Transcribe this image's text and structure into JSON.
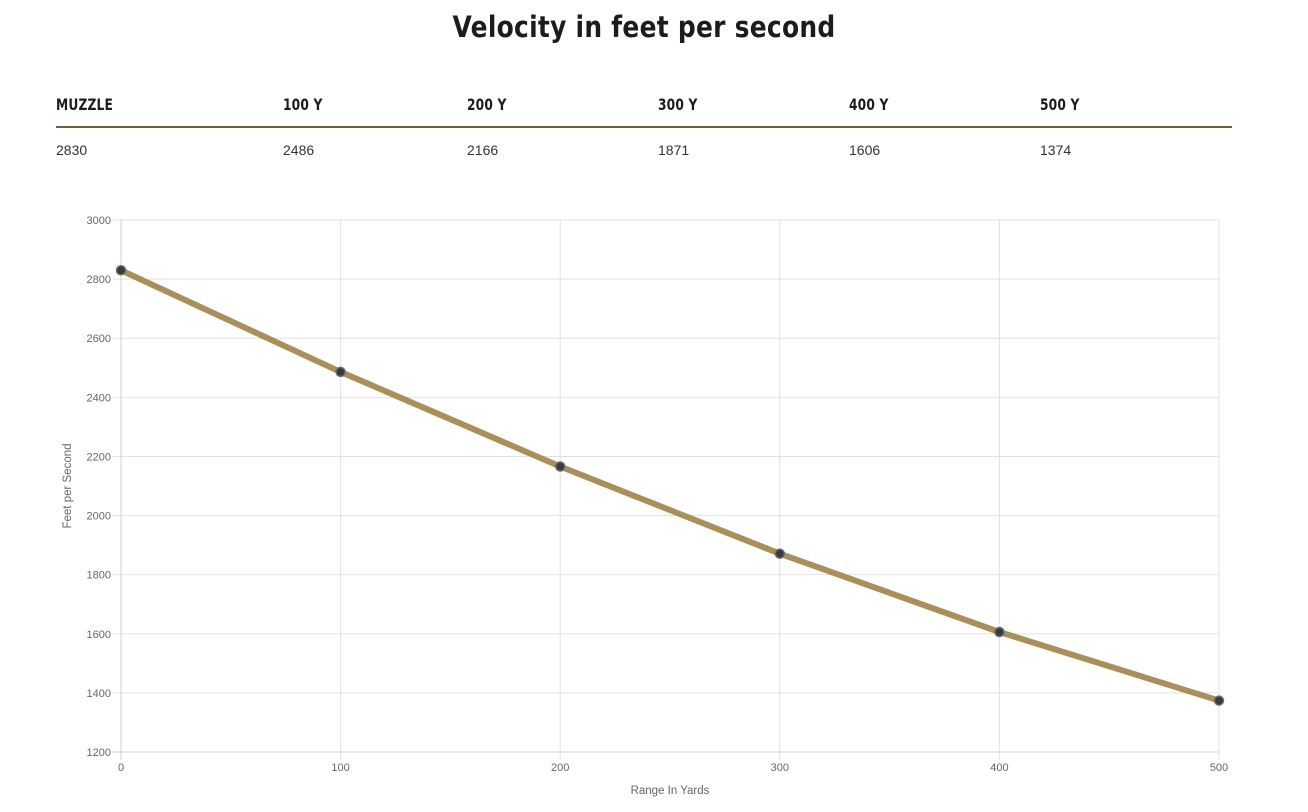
{
  "page": {
    "title": "Velocity in feet per second"
  },
  "table": {
    "headers": [
      "MUZZLE",
      "100 Y",
      "200 Y",
      "300 Y",
      "400 Y",
      "500 Y"
    ],
    "values": [
      "2830",
      "2486",
      "2166",
      "1871",
      "1606",
      "1374"
    ]
  },
  "colors": {
    "line": "#a98f5a",
    "point": "#3a3a3a",
    "divider": "#6f5f3c",
    "grid": "#e2e2e2"
  },
  "chart_data": {
    "type": "line",
    "title": "",
    "xlabel": "Range In Yards",
    "ylabel": "Feet per Second",
    "x": [
      0,
      100,
      200,
      300,
      400,
      500
    ],
    "series": [
      {
        "values": [
          2830,
          2486,
          2166,
          1871,
          1606,
          1374
        ]
      }
    ],
    "xlim": [
      0,
      500
    ],
    "ylim": [
      1200,
      3000
    ],
    "xticks": [
      0,
      100,
      200,
      300,
      400,
      500
    ],
    "yticks": [
      1200,
      1400,
      1600,
      1800,
      2000,
      2200,
      2400,
      2600,
      2800,
      3000
    ],
    "grid": true,
    "legend": "none"
  }
}
